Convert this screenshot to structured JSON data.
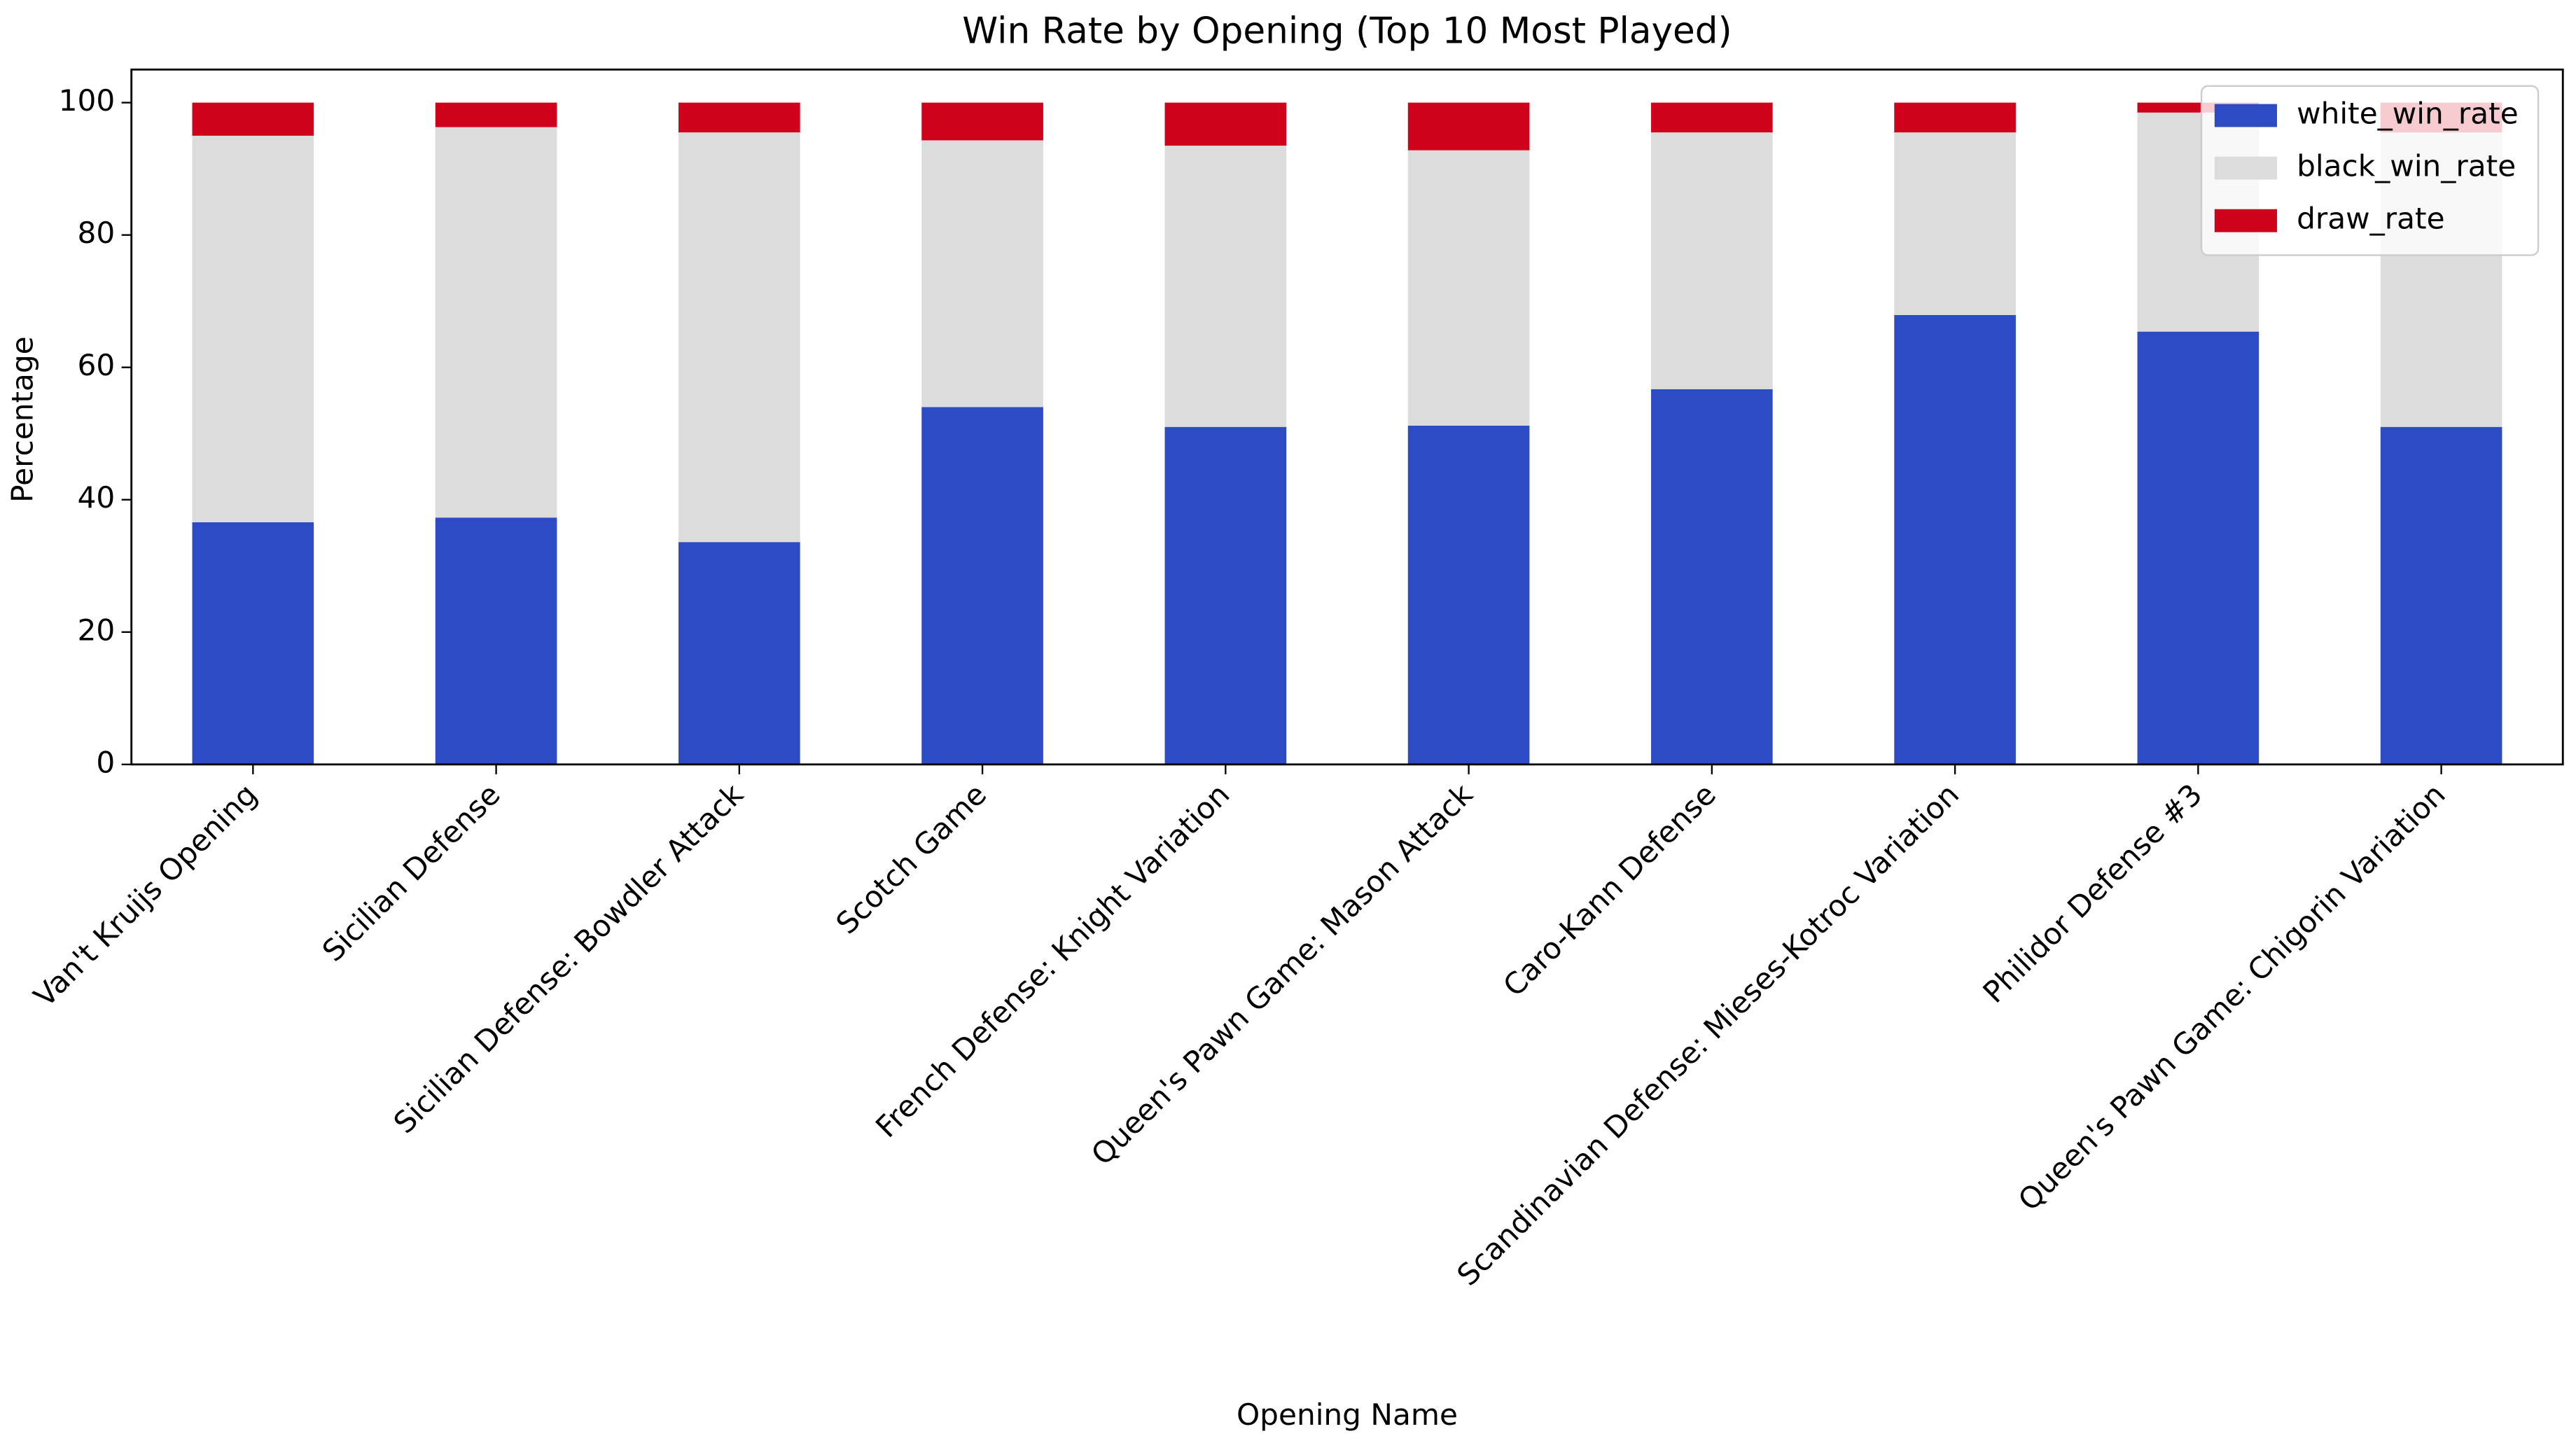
{
  "chart_data": {
    "type": "stacked_bar",
    "title": "Win Rate by Opening (Top 10 Most Played)",
    "x_label": "Opening Name",
    "y_label": "Percentage",
    "categories": [
      "Van't Kruijs Opening",
      "Sicilian Defense",
      "Sicilian Defense: Bowdler Attack",
      "Scotch Game",
      "French Defense: Knight Variation",
      "Queen's Pawn Game: Mason Attack",
      "Caro-Kann Defense",
      "Scandinavian Defense: Mieses-Kotroc Variation",
      "Philidor Defense #3",
      "Queen's Pawn Game: Chigorin Variation"
    ],
    "series": [
      {
        "name": "white_win_rate",
        "color": "#2e4bc6",
        "values": [
          36.6,
          37.3,
          33.6,
          54.0,
          51.0,
          51.2,
          56.7,
          67.9,
          65.4,
          51.0
        ]
      },
      {
        "name": "black_win_rate",
        "color": "#dcdcdc",
        "values": [
          58.4,
          59.0,
          61.9,
          40.3,
          42.5,
          41.6,
          38.8,
          27.6,
          33.1,
          44.5
        ]
      },
      {
        "name": "draw_rate",
        "color": "#d0021b",
        "values": [
          5.0,
          3.7,
          4.5,
          5.7,
          6.5,
          7.2,
          4.5,
          4.5,
          1.5,
          4.5
        ]
      }
    ],
    "ylim": [
      0,
      105
    ],
    "yticks": [
      0,
      20,
      40,
      60,
      80,
      100
    ],
    "grid": false,
    "legend": "upper right"
  }
}
